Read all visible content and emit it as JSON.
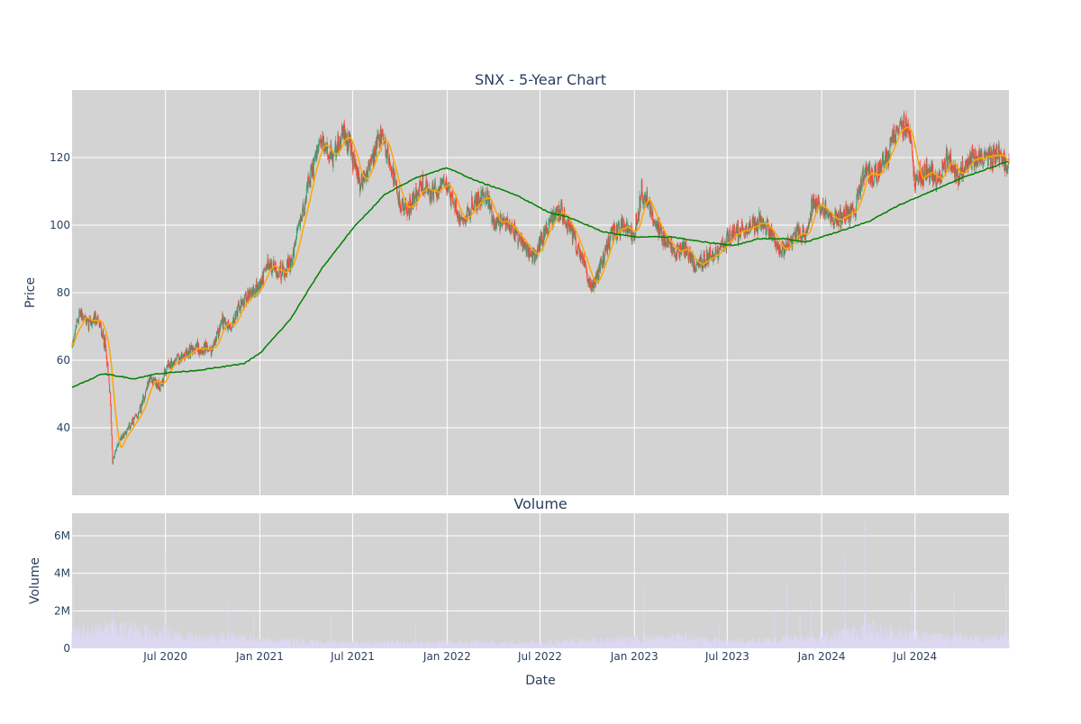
{
  "chart_data": [
    {
      "type": "candlestick",
      "title": "SNX - 5-Year Chart",
      "xlabel": "",
      "ylabel": "Price",
      "x_start": "2020-01-01",
      "x_end": "2024-12-31",
      "ylim": [
        20,
        140
      ],
      "yticks": [
        40,
        60,
        80,
        100,
        120
      ],
      "grid": true,
      "background": "#d3d3d3",
      "colors": {
        "up": "#3d9970",
        "down": "#ff4136",
        "ma_short": "#ffa500",
        "ma_long": "#008000"
      },
      "legend": "none",
      "close_anchors": [
        [
          "2020-01-01",
          64
        ],
        [
          "2020-01-15",
          74
        ],
        [
          "2020-02-01",
          71
        ],
        [
          "2020-02-20",
          72
        ],
        [
          "2020-03-05",
          65
        ],
        [
          "2020-03-15",
          50
        ],
        [
          "2020-03-20",
          30
        ],
        [
          "2020-04-01",
          36
        ],
        [
          "2020-04-20",
          40
        ],
        [
          "2020-05-10",
          44
        ],
        [
          "2020-06-01",
          55
        ],
        [
          "2020-06-20",
          52
        ],
        [
          "2020-07-05",
          58
        ],
        [
          "2020-08-01",
          61
        ],
        [
          "2020-09-01",
          64
        ],
        [
          "2020-10-01",
          63
        ],
        [
          "2020-10-20",
          72
        ],
        [
          "2020-11-05",
          70
        ],
        [
          "2020-11-20",
          75
        ],
        [
          "2020-12-15",
          80
        ],
        [
          "2021-01-01",
          82
        ],
        [
          "2021-01-15",
          88
        ],
        [
          "2021-02-15",
          86
        ],
        [
          "2021-03-05",
          90
        ],
        [
          "2021-03-25",
          104
        ],
        [
          "2021-04-15",
          118
        ],
        [
          "2021-05-01",
          124
        ],
        [
          "2021-05-25",
          120
        ],
        [
          "2021-06-15",
          128
        ],
        [
          "2021-07-01",
          120
        ],
        [
          "2021-07-15",
          112
        ],
        [
          "2021-08-05",
          118
        ],
        [
          "2021-08-25",
          126
        ],
        [
          "2021-09-10",
          120
        ],
        [
          "2021-10-01",
          106
        ],
        [
          "2021-10-20",
          105
        ],
        [
          "2021-11-10",
          112
        ],
        [
          "2021-12-01",
          109
        ],
        [
          "2022-01-01",
          112
        ],
        [
          "2022-01-25",
          102
        ],
        [
          "2022-02-25",
          106
        ],
        [
          "2022-03-15",
          110
        ],
        [
          "2022-04-05",
          100
        ],
        [
          "2022-05-05",
          101
        ],
        [
          "2022-05-20",
          96
        ],
        [
          "2022-06-20",
          90
        ],
        [
          "2022-07-15",
          100
        ],
        [
          "2022-08-10",
          104
        ],
        [
          "2022-09-10",
          94
        ],
        [
          "2022-10-10",
          82
        ],
        [
          "2022-10-25",
          87
        ],
        [
          "2022-11-20",
          98
        ],
        [
          "2022-12-10",
          100
        ],
        [
          "2023-01-01",
          97
        ],
        [
          "2023-01-15",
          110
        ],
        [
          "2023-02-05",
          104
        ],
        [
          "2023-02-25",
          96
        ],
        [
          "2023-03-20",
          92
        ],
        [
          "2023-04-10",
          93
        ],
        [
          "2023-05-01",
          88
        ],
        [
          "2023-06-01",
          91
        ],
        [
          "2023-07-01",
          96
        ],
        [
          "2023-08-01",
          99
        ],
        [
          "2023-09-01",
          101
        ],
        [
          "2023-09-20",
          99
        ],
        [
          "2023-10-15",
          92
        ],
        [
          "2023-11-10",
          97
        ],
        [
          "2023-12-01",
          98
        ],
        [
          "2023-12-15",
          107
        ],
        [
          "2024-01-10",
          104
        ],
        [
          "2024-01-25",
          101
        ],
        [
          "2024-02-15",
          103
        ],
        [
          "2024-03-05",
          104
        ],
        [
          "2024-03-25",
          116
        ],
        [
          "2024-04-10",
          114
        ],
        [
          "2024-05-05",
          120
        ],
        [
          "2024-06-01",
          130
        ],
        [
          "2024-06-20",
          129
        ],
        [
          "2024-07-01",
          112
        ],
        [
          "2024-07-25",
          117
        ],
        [
          "2024-08-15",
          113
        ],
        [
          "2024-09-05",
          121
        ],
        [
          "2024-09-20",
          114
        ],
        [
          "2024-10-15",
          120
        ],
        [
          "2024-11-15",
          119
        ],
        [
          "2024-12-10",
          121
        ],
        [
          "2024-12-31",
          117
        ]
      ],
      "ma_long_anchors": [
        [
          "2020-01-01",
          52
        ],
        [
          "2020-03-01",
          56
        ],
        [
          "2020-05-01",
          54.5
        ],
        [
          "2020-06-15",
          56
        ],
        [
          "2020-09-01",
          57
        ],
        [
          "2020-10-20",
          58
        ],
        [
          "2020-12-01",
          59
        ],
        [
          "2021-01-01",
          62
        ],
        [
          "2021-03-01",
          72
        ],
        [
          "2021-05-01",
          87
        ],
        [
          "2021-07-01",
          99
        ],
        [
          "2021-09-01",
          109
        ],
        [
          "2021-11-01",
          114
        ],
        [
          "2021-12-31",
          117
        ],
        [
          "2022-03-01",
          113
        ],
        [
          "2022-05-15",
          109
        ],
        [
          "2022-07-15",
          104
        ],
        [
          "2022-09-01",
          102
        ],
        [
          "2022-11-01",
          98
        ],
        [
          "2023-01-01",
          96.5
        ],
        [
          "2023-03-15",
          96.5
        ],
        [
          "2023-05-15",
          95
        ],
        [
          "2023-07-15",
          94
        ],
        [
          "2023-09-01",
          96
        ],
        [
          "2023-10-20",
          96
        ],
        [
          "2023-12-01",
          95
        ],
        [
          "2024-02-01",
          98
        ],
        [
          "2024-04-01",
          101
        ],
        [
          "2024-06-01",
          106
        ],
        [
          "2024-08-01",
          110
        ],
        [
          "2024-10-01",
          114
        ],
        [
          "2024-12-31",
          119
        ]
      ],
      "ma_short_window_days": 20
    },
    {
      "type": "bar",
      "title": "Volume",
      "xlabel": "Date",
      "ylabel": "Volume",
      "ylim": [
        0,
        7200000
      ],
      "yticks": [
        0,
        2000000,
        4000000,
        6000000
      ],
      "ytick_labels": [
        "0",
        "2M",
        "4M",
        "6M"
      ],
      "xticks": [
        "2020-07-01",
        "2021-01-01",
        "2021-07-01",
        "2022-01-01",
        "2022-07-01",
        "2023-01-01",
        "2023-07-01",
        "2024-01-01",
        "2024-07-01"
      ],
      "xtick_labels": [
        "Jul 2020",
        "Jan 2021",
        "Jul 2021",
        "Jan 2022",
        "Jul 2022",
        "Jan 2023",
        "Jul 2023",
        "Jan 2024",
        "Jul 2024"
      ],
      "grid": true,
      "background": "#d3d3d3",
      "bar_color": "#ddd8f2",
      "base_volume_anchors": [
        [
          "2020-01-01",
          800000
        ],
        [
          "2020-03-15",
          1100000
        ],
        [
          "2020-06-01",
          900000
        ],
        [
          "2020-09-01",
          600000
        ],
        [
          "2020-11-01",
          700000
        ],
        [
          "2021-01-01",
          450000
        ],
        [
          "2021-06-01",
          300000
        ],
        [
          "2022-01-01",
          300000
        ],
        [
          "2022-06-01",
          300000
        ],
        [
          "2022-10-01",
          400000
        ],
        [
          "2023-01-01",
          500000
        ],
        [
          "2023-04-01",
          600000
        ],
        [
          "2023-07-01",
          350000
        ],
        [
          "2023-11-01",
          500000
        ],
        [
          "2024-02-01",
          700000
        ],
        [
          "2024-03-20",
          1000000
        ],
        [
          "2024-06-01",
          800000
        ],
        [
          "2024-09-01",
          600000
        ],
        [
          "2024-12-31",
          550000
        ]
      ],
      "volume_spikes": [
        [
          "2020-01-03",
          3600000
        ],
        [
          "2020-03-19",
          2200000
        ],
        [
          "2020-06-30",
          5100000
        ],
        [
          "2020-11-01",
          2600000
        ],
        [
          "2020-12-20",
          2200000
        ],
        [
          "2021-05-19",
          1600000
        ],
        [
          "2021-11-01",
          1500000
        ],
        [
          "2023-01-20",
          3400000
        ],
        [
          "2023-06-15",
          1300000
        ],
        [
          "2023-10-01",
          2100000
        ],
        [
          "2023-10-25",
          3400000
        ],
        [
          "2023-11-20",
          1800000
        ],
        [
          "2023-12-12",
          2700000
        ],
        [
          "2024-02-15",
          5000000
        ],
        [
          "2024-03-25",
          6800000
        ],
        [
          "2024-04-10",
          1600000
        ],
        [
          "2024-06-25",
          3000000
        ],
        [
          "2024-09-15",
          3000000
        ],
        [
          "2024-12-25",
          3300000
        ]
      ]
    }
  ]
}
